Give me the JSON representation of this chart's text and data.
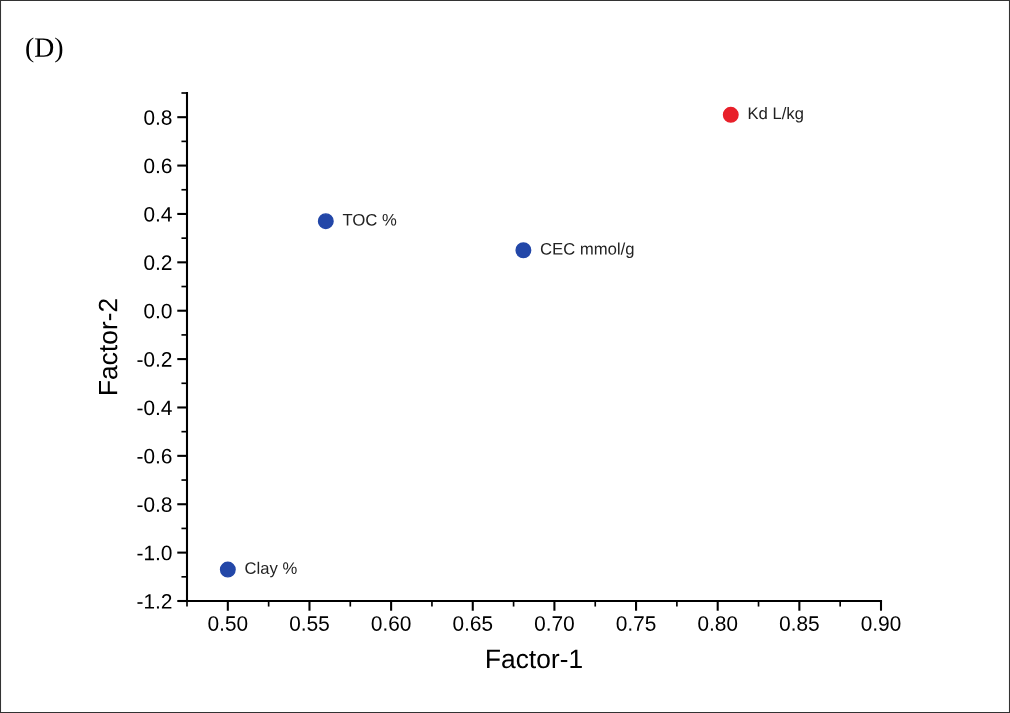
{
  "chart_data": {
    "type": "scatter",
    "title": "(D)",
    "xlabel": "Factor-1",
    "ylabel": "Factor-2",
    "series": [
      {
        "name": "Kd L/kg",
        "color": "#e8202a",
        "x": [
          0.808
        ],
        "values": [
          0.81
        ]
      },
      {
        "name": "TOC %",
        "color": "#2347a8",
        "x": [
          0.56
        ],
        "values": [
          0.37
        ]
      },
      {
        "name": "CEC mmol/g",
        "color": "#2347a8",
        "x": [
          0.681
        ],
        "values": [
          0.25
        ]
      },
      {
        "name": "Clay %",
        "color": "#2347a8",
        "x": [
          0.5
        ],
        "values": [
          -1.07
        ]
      }
    ],
    "xlim": [
      0.475,
      0.9
    ],
    "xticks": [
      {
        "value": 0.5,
        "label": "0.50"
      },
      {
        "value": 0.55,
        "label": "0.55"
      },
      {
        "value": 0.6,
        "label": "0.60"
      },
      {
        "value": 0.65,
        "label": "0.65"
      },
      {
        "value": 0.7,
        "label": "0.70"
      },
      {
        "value": 0.75,
        "label": "0.75"
      },
      {
        "value": 0.8,
        "label": "0.80"
      },
      {
        "value": 0.85,
        "label": "0.85"
      },
      {
        "value": 0.9,
        "label": "0.90"
      }
    ],
    "ylim": [
      -1.2,
      0.9
    ],
    "yticks": [
      {
        "value": -1.2,
        "label": "-1.2"
      },
      {
        "value": -1.0,
        "label": "-1.0"
      },
      {
        "value": -0.8,
        "label": "-0.8"
      },
      {
        "value": -0.6,
        "label": "-0.6"
      },
      {
        "value": -0.4,
        "label": "-0.4"
      },
      {
        "value": -0.2,
        "label": "-0.2"
      },
      {
        "value": 0.0,
        "label": "0.0"
      },
      {
        "value": 0.2,
        "label": "0.2"
      },
      {
        "value": 0.4,
        "label": "0.4"
      },
      {
        "value": 0.6,
        "label": "0.6"
      },
      {
        "value": 0.8,
        "label": "0.8"
      }
    ],
    "grid": false,
    "legend": false,
    "marker": "circle"
  }
}
